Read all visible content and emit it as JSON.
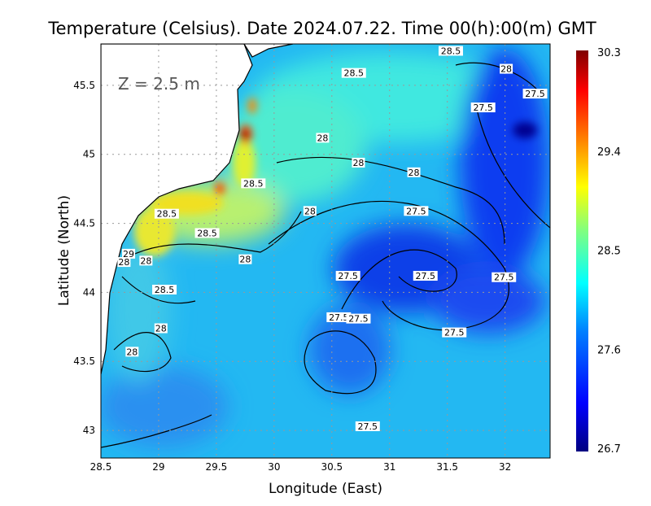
{
  "title": "Temperature (Celsius). Date 2024.07.22. Time 00(h):00(m)  GMT",
  "depth_label": "Z  =  2.5  m",
  "chart_data": {
    "type": "heatmap",
    "xlabel": "Longitude (East)",
    "ylabel": "Latitude (North)",
    "xlim": [
      28.5,
      32.39
    ],
    "ylim": [
      42.8,
      45.8
    ],
    "x_ticks": [
      "28.5",
      "29",
      "29.5",
      "30",
      "30.5",
      "31",
      "31.5",
      "32"
    ],
    "y_ticks": [
      "43",
      "43.5",
      "44",
      "44.5",
      "45",
      "45.5"
    ],
    "grid": true,
    "colorbar": {
      "min": 26.7,
      "max": 30.3,
      "ticks": [
        "30.3",
        "29.4",
        "28.5",
        "27.6",
        "26.7"
      ],
      "colormap": [
        "#000080",
        "#0000ff",
        "#0080ff",
        "#00ffff",
        "#80ff80",
        "#ffff00",
        "#ff8000",
        "#ff0000",
        "#800000"
      ]
    },
    "contour_labels": [
      {
        "text": "28.5",
        "lon": 31.53,
        "lat": 45.75
      },
      {
        "text": "28",
        "lon": 32.01,
        "lat": 45.62
      },
      {
        "text": "28.5",
        "lon": 30.69,
        "lat": 45.59
      },
      {
        "text": "27.5",
        "lon": 32.26,
        "lat": 45.44
      },
      {
        "text": "27.5",
        "lon": 31.81,
        "lat": 45.34
      },
      {
        "text": "28",
        "lon": 30.42,
        "lat": 45.12
      },
      {
        "text": "28",
        "lon": 30.73,
        "lat": 44.94
      },
      {
        "text": "28",
        "lon": 31.21,
        "lat": 44.87
      },
      {
        "text": "28.5",
        "lon": 29.82,
        "lat": 44.79
      },
      {
        "text": "28",
        "lon": 30.31,
        "lat": 44.59
      },
      {
        "text": "27.5",
        "lon": 31.23,
        "lat": 44.59
      },
      {
        "text": "28.5",
        "lon": 29.07,
        "lat": 44.57
      },
      {
        "text": "28.5",
        "lon": 29.42,
        "lat": 44.43
      },
      {
        "text": "28",
        "lon": 29.75,
        "lat": 44.24
      },
      {
        "text": "29",
        "lon": 28.74,
        "lat": 44.28
      },
      {
        "text": "28",
        "lon": 28.7,
        "lat": 44.22
      },
      {
        "text": "28",
        "lon": 28.89,
        "lat": 44.23
      },
      {
        "text": "27.5",
        "lon": 30.64,
        "lat": 44.12
      },
      {
        "text": "27.5",
        "lon": 31.31,
        "lat": 44.12
      },
      {
        "text": "27.5",
        "lon": 31.99,
        "lat": 44.11
      },
      {
        "text": "28.5",
        "lon": 29.05,
        "lat": 44.02
      },
      {
        "text": "27.5",
        "lon": 30.56,
        "lat": 43.82
      },
      {
        "text": "27.5",
        "lon": 30.73,
        "lat": 43.81
      },
      {
        "text": "28",
        "lon": 29.02,
        "lat": 43.74
      },
      {
        "text": "27.5",
        "lon": 31.56,
        "lat": 43.71
      },
      {
        "text": "28",
        "lon": 28.77,
        "lat": 43.57
      },
      {
        "text": "27.5",
        "lon": 30.81,
        "lat": 43.03
      }
    ]
  }
}
